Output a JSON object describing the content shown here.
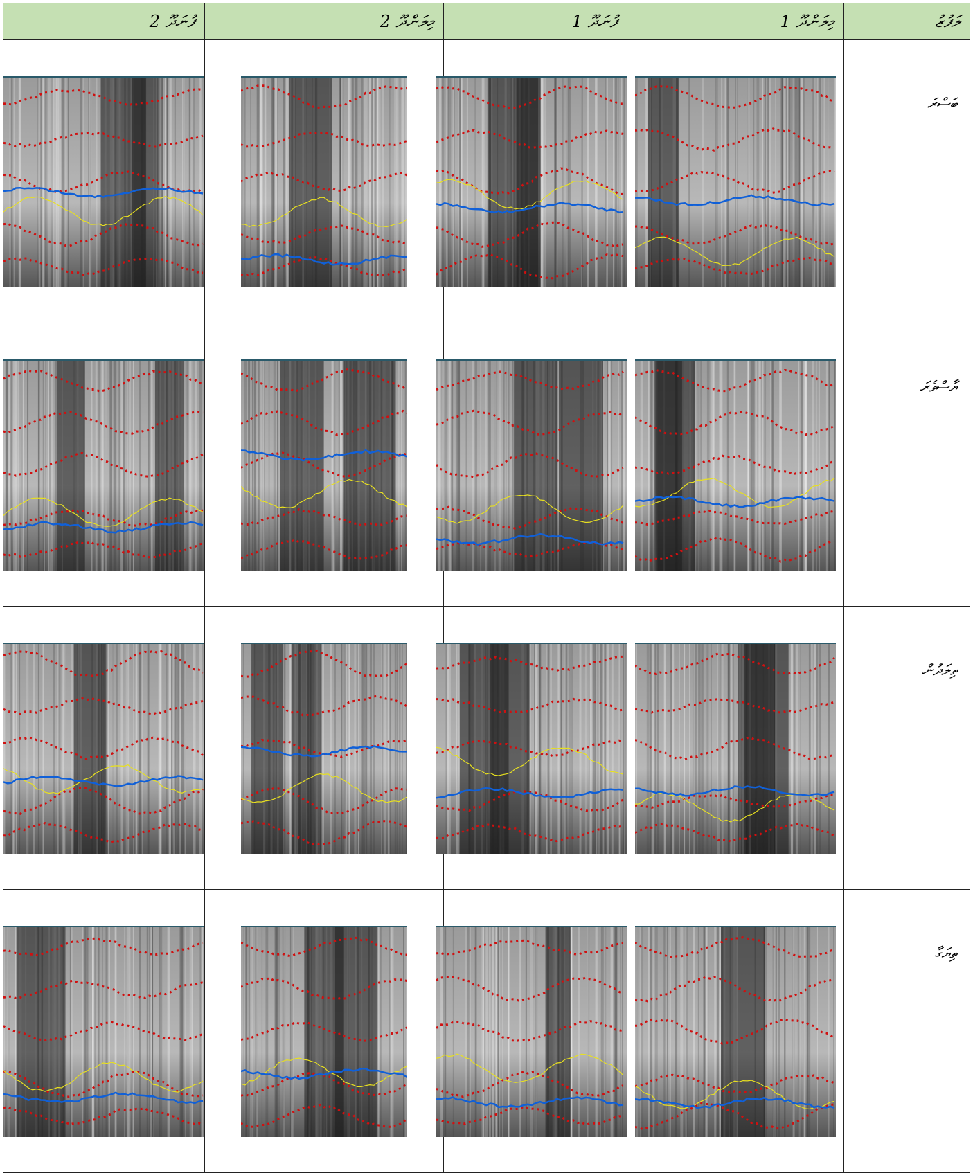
{
  "header": {
    "cells": [
      "ލަފުޒު",
      "މިލަންދޫ 1",
      "ފުނަދޫ 1",
      "މިލަންދޫ 2",
      "ފުނަދޫ 2"
    ]
  },
  "rows": [
    {
      "word": "ބަސްރަ"
    },
    {
      "word": "ޔާސްވެރަ"
    },
    {
      "word": "ތިލަދުން"
    },
    {
      "word": "ތިޔަގާ"
    }
  ]
}
